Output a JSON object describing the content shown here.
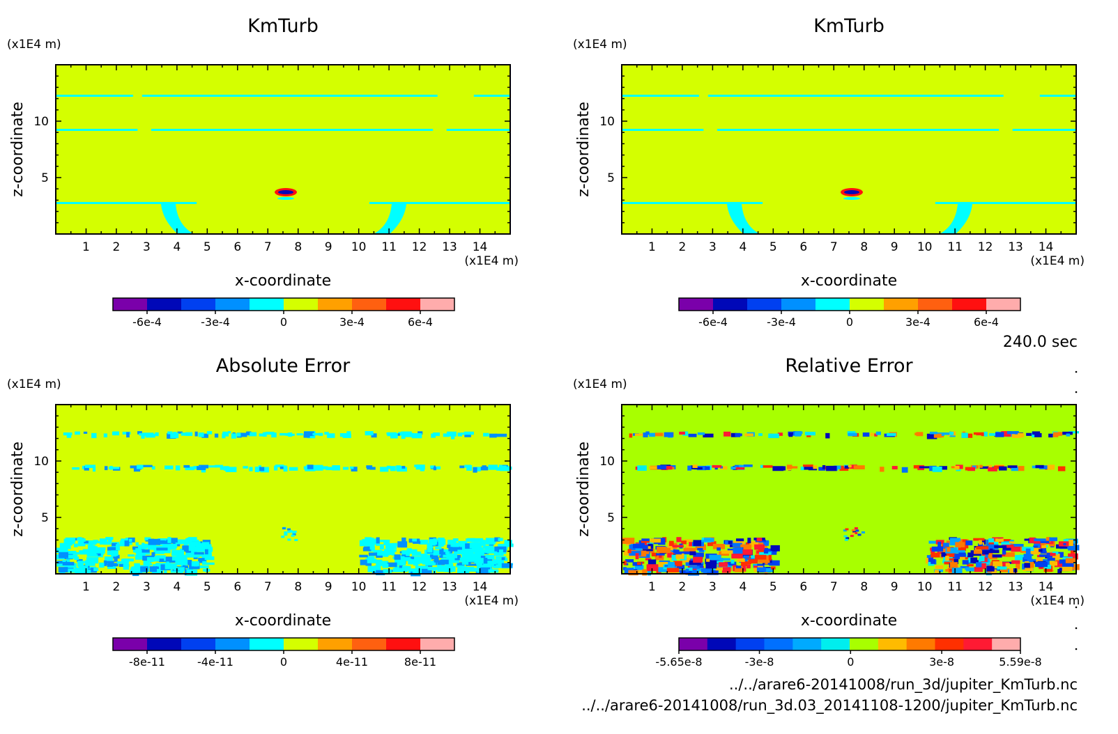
{
  "colors": {
    "scale10": [
      "#7a00aa",
      "#0008b8",
      "#0040f0",
      "#0090ff",
      "#00ffff",
      "#d4ff00",
      "#ffa000",
      "#ff6010",
      "#ff1010",
      "#ffacac"
    ],
    "scale11": [
      "#7a00aa",
      "#0008b8",
      "#0040f0",
      "#0070ff",
      "#00aaff",
      "#00eeee",
      "#a8ff00",
      "#ffbb00",
      "#ff7a00",
      "#ff3000",
      "#ff1a33",
      "#ffacac"
    ],
    "field_km": "#d4ff00",
    "field_rel": "#a8ff00"
  },
  "time_label": "240.0 sec",
  "file_paths": [
    "../../arare6-20141008/run_3d/jupiter_KmTurb.nc",
    "../../arare6-20141008/run_3d.03_20141108-1200/jupiter_KmTurb.nc"
  ],
  "chart_data": [
    {
      "type": "heatmap",
      "title": "KmTurb",
      "xlabel": "x-coordinate",
      "ylabel": "z-coordinate",
      "x_unit": "(x1E4 m)",
      "y_unit": "(x1E4 m)",
      "x_ticks": [
        "1",
        "2",
        "3",
        "4",
        "5",
        "6",
        "7",
        "8",
        "9",
        "10",
        "11",
        "12",
        "13",
        "14"
      ],
      "y_ticks": [
        "5",
        "10"
      ],
      "xlim": [
        0,
        15
      ],
      "ylim": [
        0,
        15
      ],
      "colorbar_ticks": [
        "-6e-4",
        "-3e-4",
        "0",
        "3e-4",
        "6e-4"
      ],
      "colorbar_range": [
        -0.00075,
        0.00075
      ],
      "background_level": 0
    },
    {
      "type": "heatmap",
      "title": "KmTurb",
      "xlabel": "x-coordinate",
      "ylabel": "z-coordinate",
      "x_unit": "(x1E4 m)",
      "y_unit": "(x1E4 m)",
      "x_ticks": [
        "1",
        "2",
        "3",
        "4",
        "5",
        "6",
        "7",
        "8",
        "9",
        "10",
        "11",
        "12",
        "13",
        "14"
      ],
      "y_ticks": [
        "5",
        "10"
      ],
      "xlim": [
        0,
        15
      ],
      "ylim": [
        0,
        15
      ],
      "colorbar_ticks": [
        "-6e-4",
        "-3e-4",
        "0",
        "3e-4",
        "6e-4"
      ],
      "colorbar_range": [
        -0.00075,
        0.00075
      ],
      "background_level": 0
    },
    {
      "type": "heatmap",
      "title": "Absolute Error",
      "xlabel": "x-coordinate",
      "ylabel": "z-coordinate",
      "x_unit": "(x1E4 m)",
      "y_unit": "(x1E4 m)",
      "x_ticks": [
        "1",
        "2",
        "3",
        "4",
        "5",
        "6",
        "7",
        "8",
        "9",
        "10",
        "11",
        "12",
        "13",
        "14"
      ],
      "y_ticks": [
        "5",
        "10"
      ],
      "xlim": [
        0,
        15
      ],
      "ylim": [
        0,
        15
      ],
      "colorbar_ticks": [
        "-8e-11",
        "-4e-11",
        "0",
        "4e-11",
        "8e-11"
      ],
      "colorbar_range": [
        -1e-10,
        1e-10
      ],
      "background_level": 0
    },
    {
      "type": "heatmap",
      "title": "Relative Error",
      "xlabel": "x-coordinate",
      "ylabel": "z-coordinate",
      "x_unit": "(x1E4 m)",
      "y_unit": "(x1E4 m)",
      "x_ticks": [
        "1",
        "2",
        "3",
        "4",
        "5",
        "6",
        "7",
        "8",
        "9",
        "10",
        "11",
        "12",
        "13",
        "14"
      ],
      "y_ticks": [
        "5",
        "10"
      ],
      "xlim": [
        0,
        15
      ],
      "ylim": [
        0,
        15
      ],
      "colorbar_ticks": [
        "-5.65e-8",
        "-3e-8",
        "0",
        "3e-8",
        "5.59e-8"
      ],
      "colorbar_range": [
        -5.65e-08,
        5.59e-08
      ],
      "background_level": 0
    }
  ]
}
